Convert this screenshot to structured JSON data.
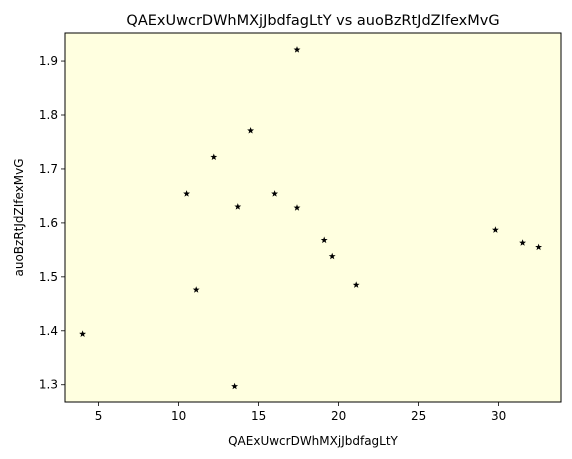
{
  "chart_data": {
    "type": "scatter",
    "title": "QAExUwcrDWhMXjJbdfagLtY vs auoBzRtJdZIfexMvG",
    "xlabel": "QAExUwcrDWhMXjJbdfagLtY",
    "ylabel": "auoBzRtJdZIfexMvG",
    "xlim": [
      2.9,
      33.9
    ],
    "ylim": [
      1.268,
      1.952
    ],
    "xticks": [
      5,
      10,
      15,
      20,
      25,
      30
    ],
    "yticks": [
      1.3,
      1.4,
      1.5,
      1.6,
      1.7,
      1.8,
      1.9
    ],
    "grid": false,
    "marker": "star",
    "marker_color": "#000000",
    "plot_background": "#ffffe0",
    "points": [
      {
        "x": 4.0,
        "y": 1.394
      },
      {
        "x": 10.5,
        "y": 1.654
      },
      {
        "x": 11.1,
        "y": 1.476
      },
      {
        "x": 12.2,
        "y": 1.722
      },
      {
        "x": 13.5,
        "y": 1.297
      },
      {
        "x": 13.7,
        "y": 1.63
      },
      {
        "x": 14.5,
        "y": 1.771
      },
      {
        "x": 16.0,
        "y": 1.654
      },
      {
        "x": 17.4,
        "y": 1.628
      },
      {
        "x": 17.4,
        "y": 1.921
      },
      {
        "x": 19.1,
        "y": 1.568
      },
      {
        "x": 19.6,
        "y": 1.538
      },
      {
        "x": 21.1,
        "y": 1.485
      },
      {
        "x": 29.8,
        "y": 1.587
      },
      {
        "x": 31.5,
        "y": 1.563
      },
      {
        "x": 32.5,
        "y": 1.555
      }
    ]
  }
}
